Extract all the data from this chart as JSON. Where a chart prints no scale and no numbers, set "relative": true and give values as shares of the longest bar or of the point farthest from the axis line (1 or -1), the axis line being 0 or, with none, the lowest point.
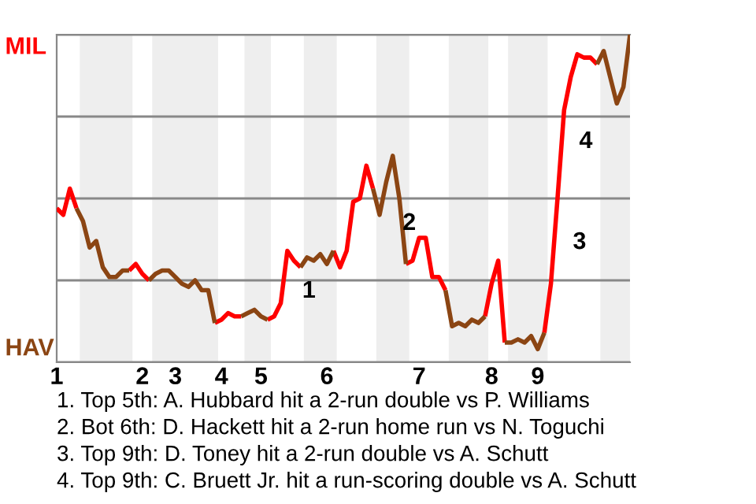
{
  "chart_data": {
    "type": "line",
    "relative": true,
    "categories": [
      "1",
      null,
      null,
      null,
      null,
      null,
      null,
      null,
      null,
      null,
      null,
      null,
      null,
      "2",
      null,
      null,
      null,
      null,
      "3",
      null,
      null,
      null,
      null,
      null,
      null,
      "4",
      null,
      null,
      null,
      null,
      null,
      "5",
      null,
      null,
      null,
      null,
      null,
      null,
      null,
      null,
      null,
      "6",
      null,
      null,
      null,
      null,
      null,
      null,
      null,
      null,
      null,
      null,
      null,
      null,
      null,
      "7",
      null,
      null,
      null,
      null,
      null,
      null,
      null,
      null,
      null,
      null,
      "8",
      null,
      null,
      null,
      null,
      null,
      null,
      "9",
      null,
      null,
      null,
      null,
      null,
      null,
      null,
      null,
      null,
      null,
      null,
      null,
      null,
      null
    ],
    "series": [
      {
        "color": "#ff0000",
        "values": [
          0.47,
          0.45,
          0.53,
          0.47,
          null,
          null,
          null,
          null,
          null,
          null,
          null,
          0.28,
          0.3,
          0.27,
          0.25,
          null,
          null,
          null,
          null,
          null,
          null,
          null,
          null,
          null,
          0.12,
          0.13,
          0.15,
          0.14,
          0.14,
          null,
          null,
          null,
          0.13,
          0.14,
          0.18,
          0.34,
          0.31,
          0.29,
          null,
          null,
          null,
          null,
          0.34,
          0.29,
          0.34,
          0.49,
          0.5,
          0.6,
          0.53,
          null,
          null,
          null,
          null,
          0.3,
          0.31,
          0.38,
          0.38,
          0.26,
          0.26,
          0.22,
          null,
          null,
          null,
          null,
          null,
          0.14,
          0.24,
          0.31,
          0.06,
          null,
          null,
          null,
          null,
          null,
          0.09,
          0.24,
          0.5,
          0.77,
          0.87,
          0.94,
          0.93,
          0.93,
          0.91,
          null,
          null,
          null,
          null,
          null
        ]
      },
      {
        "color": "#8b4513",
        "values": [
          null,
          null,
          null,
          0.47,
          0.43,
          0.35,
          0.37,
          0.29,
          0.26,
          0.26,
          0.28,
          0.28,
          null,
          null,
          0.25,
          0.27,
          0.28,
          0.28,
          0.26,
          0.24,
          0.23,
          0.25,
          0.22,
          0.22,
          0.12,
          null,
          null,
          null,
          0.14,
          0.15,
          0.16,
          0.14,
          0.13,
          null,
          null,
          null,
          null,
          0.29,
          0.32,
          0.31,
          0.33,
          0.3,
          0.34,
          null,
          null,
          null,
          null,
          null,
          0.53,
          0.45,
          0.55,
          0.63,
          0.5,
          0.3,
          null,
          null,
          null,
          null,
          null,
          0.22,
          0.11,
          0.12,
          0.11,
          0.13,
          0.12,
          0.14,
          null,
          null,
          0.06,
          0.06,
          0.07,
          0.06,
          0.08,
          0.04,
          0.09,
          null,
          null,
          null,
          null,
          null,
          null,
          null,
          0.91,
          0.95,
          0.87,
          0.79,
          0.84,
          1.0
        ]
      }
    ],
    "grid": "y",
    "annotations": [
      "MIL",
      "HAV",
      "1",
      "2",
      "3",
      "4",
      "1. Top 5th: A. Hubbard hit a 2-run double vs P. Williams",
      "2. Bot 6th: D. Hackett hit a 2-run home run vs N. Toguchi",
      "3. Top 9th: D. Toney hit a 2-run double vs A. Schutt",
      "4. Top 9th: C. Bruett Jr. hit a run-scoring double vs A. Schutt"
    ]
  }
}
